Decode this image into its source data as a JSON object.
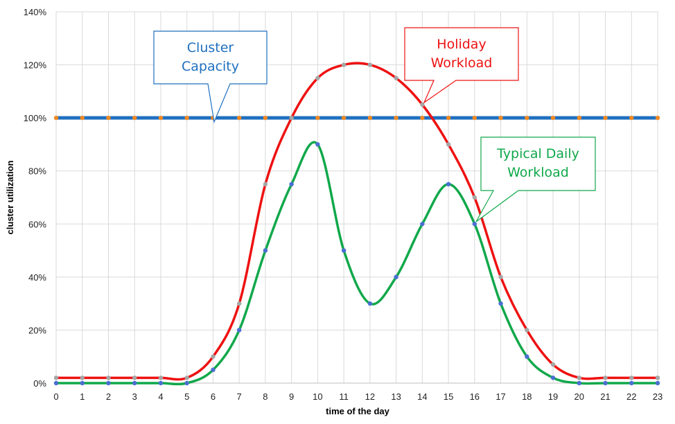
{
  "chart_data": {
    "type": "line",
    "title": "",
    "xlabel": "time of the day",
    "ylabel": "cluster utilization",
    "x": [
      0,
      1,
      2,
      3,
      4,
      5,
      6,
      7,
      8,
      9,
      10,
      11,
      12,
      13,
      14,
      15,
      16,
      17,
      18,
      19,
      20,
      21,
      22,
      23
    ],
    "xlim": [
      0,
      23
    ],
    "ylim": [
      0,
      140
    ],
    "yticks": [
      0,
      20,
      40,
      60,
      80,
      100,
      120,
      140
    ],
    "ytick_labels": [
      "0%",
      "20%",
      "40%",
      "60%",
      "80%",
      "100%",
      "120%",
      "140%"
    ],
    "xtick_labels": [
      "0",
      "1",
      "2",
      "3",
      "4",
      "5",
      "6",
      "7",
      "8",
      "9",
      "10",
      "11",
      "12",
      "13",
      "14",
      "15",
      "16",
      "17",
      "18",
      "19",
      "20",
      "21",
      "22",
      "23"
    ],
    "grid": true,
    "legend": "none",
    "series": [
      {
        "name": "Cluster Capacity",
        "color": "#1f6fbf",
        "marker_color": "#f08a24",
        "values": [
          100,
          100,
          100,
          100,
          100,
          100,
          100,
          100,
          100,
          100,
          100,
          100,
          100,
          100,
          100,
          100,
          100,
          100,
          100,
          100,
          100,
          100,
          100,
          100
        ]
      },
      {
        "name": "Holiday Workload",
        "color": "#ee1111",
        "marker_color": "#a6a6a6",
        "values": [
          2,
          2,
          2,
          2,
          2,
          2,
          10,
          30,
          75,
          100,
          115,
          120,
          120,
          115,
          105,
          90,
          70,
          40,
          20,
          7,
          2,
          2,
          2,
          2
        ]
      },
      {
        "name": "Typical Daily Workload",
        "color": "#10a84a",
        "marker_color": "#4a6fd1",
        "values": [
          0,
          0,
          0,
          0,
          0,
          0,
          5,
          20,
          50,
          75,
          90,
          50,
          30,
          40,
          60,
          75,
          60,
          30,
          10,
          2,
          0,
          0,
          0,
          0
        ]
      }
    ],
    "annotations": [
      {
        "text": [
          "Cluster",
          "Capacity"
        ],
        "color": "#1f6fbf",
        "border": "#1f6fbf"
      },
      {
        "text": [
          "Holiday",
          "Workload"
        ],
        "color": "#ee1111",
        "border": "#ee1111"
      },
      {
        "text": [
          "Typical Daily",
          "Workload"
        ],
        "color": "#10a84a",
        "border": "#10a84a"
      }
    ]
  }
}
